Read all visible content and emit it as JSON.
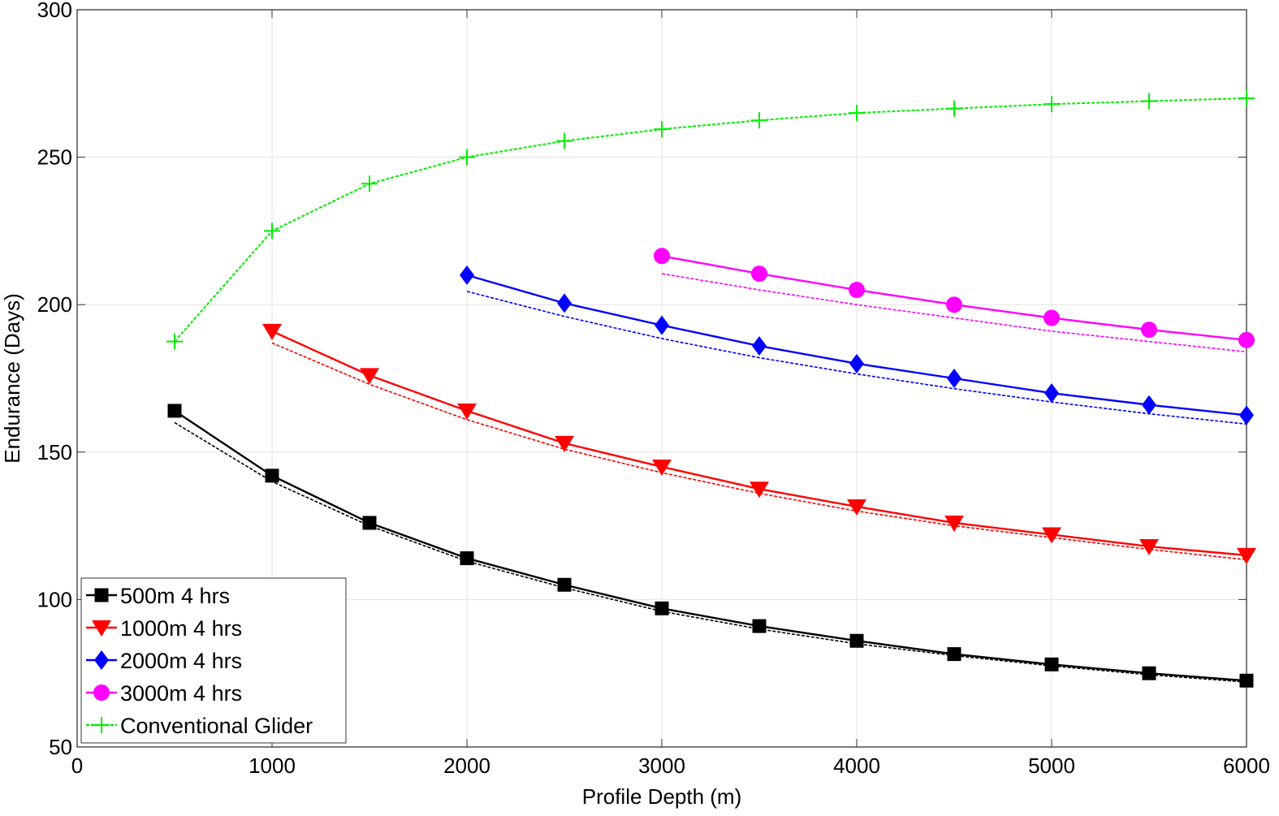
{
  "chart_data": {
    "type": "line",
    "title": "",
    "xlabel": "Profile Depth (m)",
    "ylabel": "Endurance (Days)",
    "xlim": [
      0,
      6000
    ],
    "ylim": [
      50,
      300
    ],
    "xticks": [
      0,
      1000,
      2000,
      3000,
      4000,
      5000,
      6000
    ],
    "yticks": [
      50,
      100,
      150,
      200,
      250,
      300
    ],
    "grid": true,
    "legend_position": "bottom-left",
    "series": [
      {
        "name": "500m 4 hrs",
        "color": "#000000",
        "marker": "square",
        "x": [
          500,
          1000,
          1500,
          2000,
          2500,
          3000,
          3500,
          4000,
          4500,
          5000,
          5500,
          6000
        ],
        "values": [
          164,
          142,
          126,
          114,
          105,
          97,
          91,
          86,
          81.5,
          78,
          75,
          72.5
        ],
        "dashed_values": [
          160,
          140,
          125,
          113,
          104,
          96,
          90,
          85,
          81,
          77.5,
          74.5,
          72
        ]
      },
      {
        "name": "1000m 4 hrs",
        "color": "#ff0000",
        "marker": "triangle-down",
        "x": [
          1000,
          1500,
          2000,
          2500,
          3000,
          3500,
          4000,
          4500,
          5000,
          5500,
          6000
        ],
        "values": [
          191,
          176,
          164,
          153,
          145,
          137.5,
          131.5,
          126,
          122,
          118,
          115
        ],
        "dashed_values": [
          187,
          173,
          161,
          151,
          143,
          136,
          130,
          125,
          121,
          117,
          113.5
        ]
      },
      {
        "name": "2000m 4 hrs",
        "color": "#0000ff",
        "marker": "diamond",
        "x": [
          2000,
          2500,
          3000,
          3500,
          4000,
          4500,
          5000,
          5500,
          6000
        ],
        "values": [
          210,
          200.5,
          193,
          186,
          180,
          175,
          170,
          166,
          162.5
        ],
        "dashed_values": [
          204.5,
          196,
          188.5,
          182,
          176.5,
          171.5,
          167,
          163,
          159.5
        ]
      },
      {
        "name": "3000m 4 hrs",
        "color": "#ff00ff",
        "marker": "circle",
        "x": [
          3000,
          3500,
          4000,
          4500,
          5000,
          5500,
          6000
        ],
        "values": [
          216.5,
          210.5,
          205,
          200,
          195.5,
          191.5,
          188
        ],
        "dashed_values": [
          210.5,
          205,
          200,
          195.5,
          191,
          187.5,
          184
        ]
      },
      {
        "name": "Conventional Glider",
        "color": "#00ee00",
        "marker": "plus",
        "x": [
          500,
          1000,
          1500,
          2000,
          2500,
          3000,
          3500,
          4000,
          4500,
          5000,
          5500,
          6000
        ],
        "values": [
          187.5,
          225,
          241,
          250,
          255.5,
          259.5,
          262.5,
          265,
          266.5,
          268,
          269,
          270
        ],
        "dashed_values": []
      }
    ]
  }
}
